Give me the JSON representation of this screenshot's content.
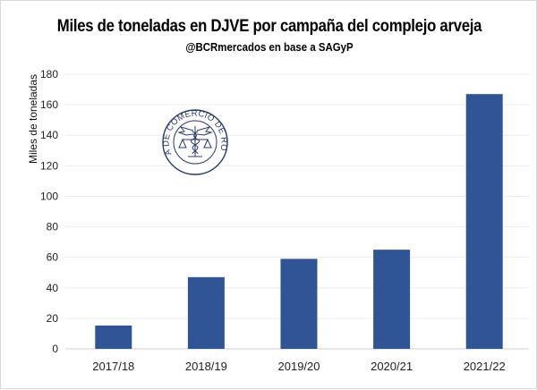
{
  "chart_data": {
    "type": "bar",
    "title": "Miles de toneladas en DJVE por campaña del complejo arveja",
    "subtitle": "@BCRmercados en base a SAGyP",
    "xlabel": "",
    "ylabel": "Miles de toneladas",
    "categories": [
      "2017/18",
      "2018/19",
      "2019/20",
      "2020/21",
      "2021/22"
    ],
    "values": [
      15.3,
      47,
      59,
      65,
      167
    ],
    "ylim": [
      0,
      180
    ],
    "yticks": [
      0,
      20,
      40,
      60,
      80,
      100,
      120,
      140,
      160,
      180
    ],
    "grid": true,
    "legend": "none",
    "bar_color": "#2F5597"
  },
  "watermark": {
    "text": "BOLSA DE COMERCIO DE ROSARIO",
    "icon": "caduceus-scales-seal-icon"
  }
}
